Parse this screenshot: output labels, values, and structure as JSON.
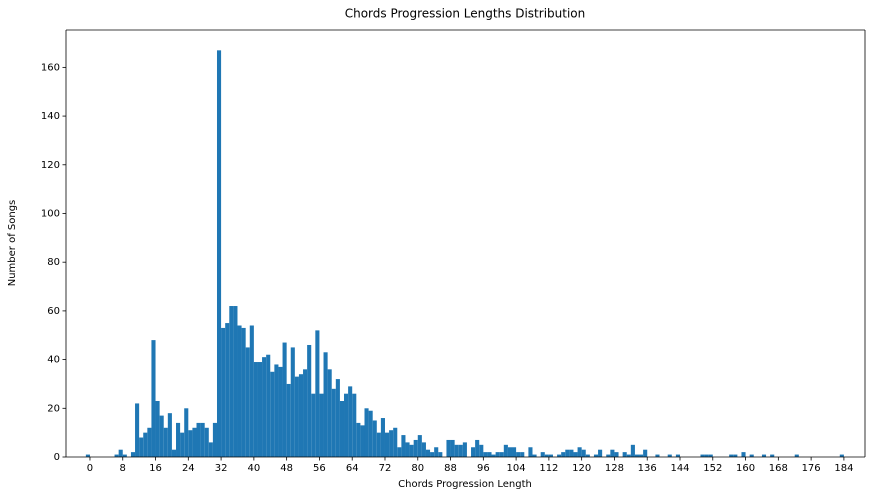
{
  "chart_data": {
    "type": "histogram",
    "title": "Chords Progression Lengths Distribution",
    "xlabel": "Chords Progression Length",
    "ylabel": "Number of Songs",
    "color": "#1f77b4",
    "bins": [
      -1,
      0,
      1,
      2,
      3,
      4,
      5,
      6,
      7,
      8,
      9,
      10,
      11,
      12,
      13,
      14,
      15,
      16,
      17,
      18,
      19,
      20,
      21,
      22,
      23,
      24,
      25,
      26,
      27,
      28,
      29,
      30,
      31,
      32,
      33,
      34,
      35,
      36,
      37,
      38,
      39,
      40,
      41,
      42,
      43,
      44,
      45,
      46,
      47,
      48,
      49,
      50,
      51,
      52,
      53,
      54,
      55,
      56,
      57,
      58,
      59,
      60,
      61,
      62,
      63,
      64,
      65,
      66,
      67,
      68,
      69,
      70,
      71,
      72,
      73,
      74,
      75,
      76,
      77,
      78,
      79,
      80,
      81,
      82,
      83,
      84,
      85,
      86,
      87,
      88,
      89,
      90,
      91,
      92,
      93,
      94,
      95,
      96,
      97,
      98,
      99,
      100,
      101,
      102,
      103,
      104,
      105,
      106,
      107,
      108,
      109,
      110,
      111,
      112,
      113,
      114,
      115,
      116,
      117,
      118,
      119,
      120,
      121,
      122,
      123,
      124,
      125,
      126,
      127,
      128,
      129,
      130,
      131,
      132,
      133,
      134,
      135,
      136,
      137,
      138,
      139,
      140,
      141,
      142,
      143,
      144,
      145,
      146,
      147,
      148,
      149,
      150,
      151,
      152,
      153,
      154,
      155,
      156,
      157,
      158,
      159,
      160,
      161,
      162,
      163,
      164,
      165,
      166,
      167,
      168,
      169,
      170,
      171,
      172,
      173,
      174,
      175,
      176,
      177,
      178,
      179,
      180,
      181,
      182,
      183,
      184
    ],
    "values": [
      1,
      0,
      0,
      0,
      0,
      0,
      0,
      1,
      3,
      1,
      0,
      2,
      22,
      8,
      10,
      12,
      48,
      23,
      17,
      12,
      18,
      3,
      14,
      10,
      20,
      11,
      12,
      14,
      14,
      12,
      6,
      14,
      167,
      53,
      55,
      62,
      62,
      54,
      53,
      45,
      54,
      39,
      39,
      41,
      42,
      35,
      38,
      37,
      47,
      30,
      45,
      33,
      34,
      36,
      46,
      26,
      52,
      26,
      43,
      36,
      28,
      32,
      23,
      26,
      29,
      26,
      14,
      13,
      20,
      19,
      15,
      10,
      16,
      10,
      11,
      12,
      4,
      9,
      6,
      5,
      7,
      9,
      6,
      3,
      2,
      4,
      2,
      0,
      7,
      7,
      5,
      5,
      6,
      0,
      4,
      7,
      5,
      2,
      2,
      1,
      2,
      2,
      5,
      4,
      4,
      2,
      2,
      0,
      4,
      1,
      0,
      2,
      1,
      1,
      0,
      1,
      2,
      3,
      3,
      2,
      4,
      3,
      1,
      0,
      1,
      3,
      0,
      1,
      3,
      2,
      0,
      2,
      1,
      5,
      1,
      1,
      3,
      0,
      0,
      1,
      0,
      0,
      1,
      0,
      1,
      0,
      0,
      0,
      0,
      0,
      1,
      1,
      1,
      0,
      0,
      0,
      0,
      1,
      1,
      0,
      2,
      0,
      1,
      0,
      0,
      1,
      0,
      1,
      0,
      0,
      0,
      0,
      0,
      1,
      0,
      0,
      0,
      0,
      0,
      0,
      0,
      0,
      0,
      0,
      1
    ],
    "xlim": [
      -5.85,
      189.15
    ],
    "ylim": [
      0,
      175.35
    ],
    "xticks": [
      0,
      8,
      16,
      24,
      32,
      40,
      48,
      56,
      64,
      72,
      80,
      88,
      96,
      104,
      112,
      120,
      128,
      136,
      144,
      152,
      160,
      168,
      176,
      184
    ],
    "yticks": [
      0,
      20,
      40,
      60,
      80,
      100,
      120,
      140,
      160
    ],
    "grid": false
  }
}
